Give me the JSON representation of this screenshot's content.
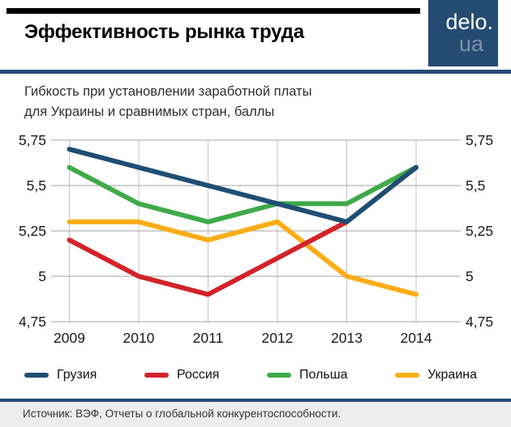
{
  "header": {
    "title": "Эффективность рынка труда",
    "logo": {
      "line1": "delo.",
      "line2": "ua"
    }
  },
  "chart_data": {
    "type": "line",
    "title": "Эффективность рынка труда",
    "subtitle": "Гибкость при установлении заработной платы\nдля Украины и сравнимых стран, баллы",
    "x": [
      "2009",
      "2010",
      "2011",
      "2012",
      "2013",
      "2014"
    ],
    "series": [
      {
        "name": "Грузия",
        "color": "#1f4e74",
        "values": [
          5.7,
          5.6,
          5.5,
          5.4,
          5.3,
          5.6
        ]
      },
      {
        "name": "Россия",
        "color": "#d2232a",
        "values": [
          5.2,
          5.0,
          4.9,
          5.1,
          5.3,
          null
        ]
      },
      {
        "name": "Польша",
        "color": "#3faa49",
        "values": [
          5.6,
          5.4,
          5.3,
          5.4,
          5.4,
          5.6
        ]
      },
      {
        "name": "Украина",
        "color": "#fbad18",
        "values": [
          5.3,
          5.3,
          5.2,
          5.3,
          5.0,
          4.9
        ]
      }
    ],
    "ylim": [
      4.75,
      5.75
    ],
    "y_ticks": [
      {
        "value": 5.75,
        "label": "5,75"
      },
      {
        "value": 5.5,
        "label": "5,5"
      },
      {
        "value": 5.25,
        "label": "5,25"
      },
      {
        "value": 5.0,
        "label": "5"
      },
      {
        "value": 4.75,
        "label": "4,75"
      }
    ],
    "grid": true,
    "dual_axis_labels": true,
    "legend_position": "bottom",
    "draw_order": [
      2,
      3,
      1,
      0
    ]
  },
  "footer": {
    "source": "Источник: ВЭФ, Отчеты о глобальной конкурентоспособности."
  },
  "colors": {
    "accent_navy": "#254b73",
    "top_bar": "#000000",
    "footer_bg": "#ededed",
    "h_gridline": "#a2a2a2",
    "v_gridline": "#c4c4c4"
  }
}
